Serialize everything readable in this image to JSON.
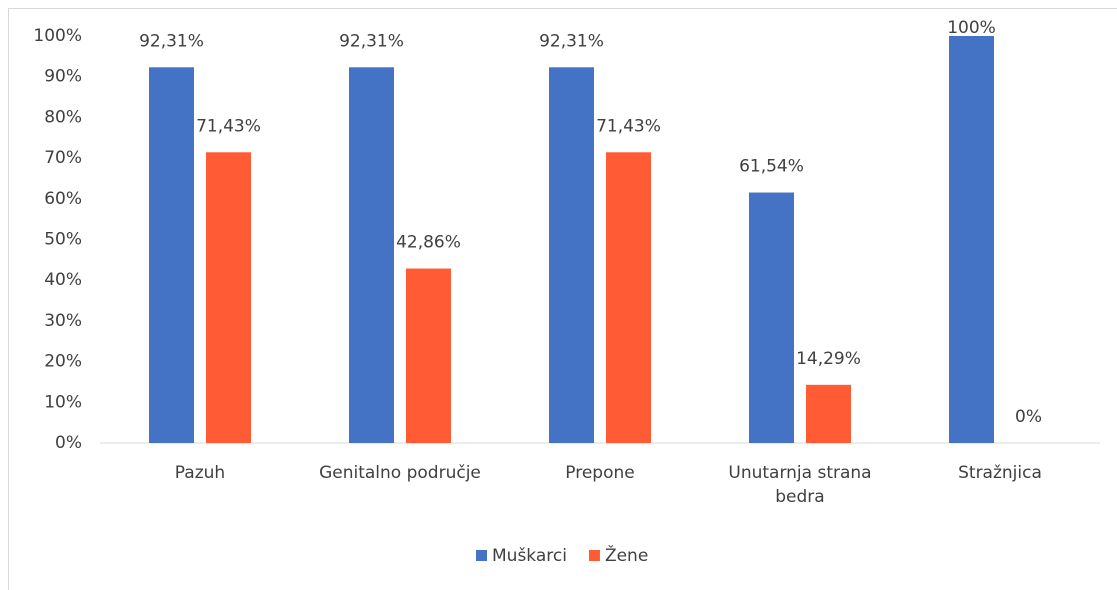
{
  "chart_data": {
    "type": "bar",
    "categories": [
      "Pazuh",
      "Genitalno područje",
      "Prepone",
      "Unutarnja strana bedra",
      "Stražnjica"
    ],
    "series": [
      {
        "name": "Muškarci",
        "color": "#4472c4",
        "values": [
          92.31,
          92.31,
          92.31,
          61.54,
          100
        ],
        "value_labels": [
          "92,31%",
          "92,31%",
          "92,31%",
          "61,54%",
          "100%"
        ]
      },
      {
        "name": "Žene",
        "color": "#ff5b35",
        "values": [
          71.43,
          42.86,
          71.43,
          14.29,
          0
        ],
        "value_labels": [
          "71,43%",
          "42,86%",
          "71,43%",
          "14,29%",
          "0%"
        ]
      }
    ],
    "ylim": [
      0,
      100
    ],
    "yticks": [
      {
        "value": 0,
        "label": "0%"
      },
      {
        "value": 10,
        "label": "10%"
      },
      {
        "value": 20,
        "label": "20%"
      },
      {
        "value": 30,
        "label": "30%"
      },
      {
        "value": 40,
        "label": "40%"
      },
      {
        "value": 50,
        "label": "50%"
      },
      {
        "value": 60,
        "label": "60%"
      },
      {
        "value": 70,
        "label": "70%"
      },
      {
        "value": 80,
        "label": "80%"
      },
      {
        "value": 90,
        "label": "90%"
      },
      {
        "value": 100,
        "label": "100%"
      }
    ],
    "grid": false,
    "legend": "bottom"
  }
}
